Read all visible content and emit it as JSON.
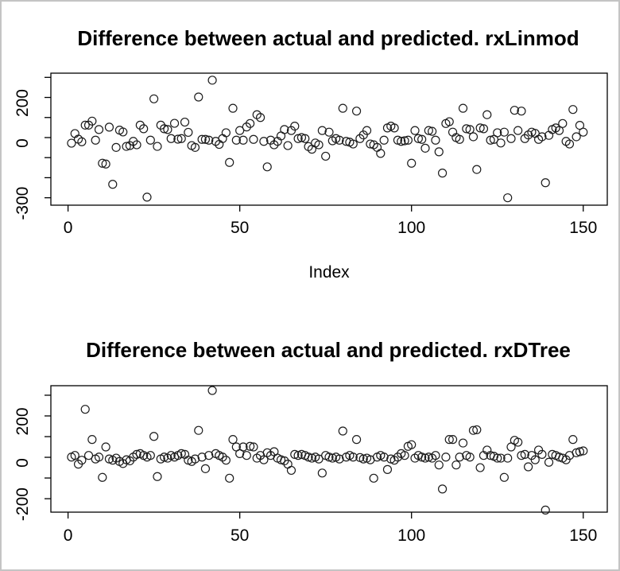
{
  "window": {
    "background": "#ffffff",
    "border_color": "#c4c4c4",
    "text_color": "#000000",
    "point_color": "#1c1c1c"
  },
  "titles": {
    "linmod": "Difference between actual and predicted. rxLinmod",
    "dtree": "Difference between actual and predicted. rxDTree"
  },
  "chart_data": [
    {
      "type": "scatter",
      "id": "rxLinmod",
      "title": "Difference between actual and predicted. rxLinmod",
      "xlabel": "Index",
      "ylabel": "",
      "marker": "open-circle",
      "grid": false,
      "x_start_index": 1,
      "xlim": [
        -5,
        157
      ],
      "ylim": [
        -337,
        321
      ],
      "x_ticks": [
        0,
        50,
        100,
        150
      ],
      "y_ticks": [
        300,
        200,
        100,
        0,
        -100,
        -200,
        -300
      ],
      "y_tick_labels_visible": [
        "200",
        "0",
        "-300"
      ],
      "values": [
        -28,
        20,
        -8,
        -21,
        62,
        62,
        82,
        -13,
        40,
        -128,
        -132,
        52,
        -233,
        -49,
        37,
        28,
        -44,
        -40,
        -19,
        -36,
        62,
        44,
        -297,
        -13,
        193,
        -44,
        62,
        44,
        40,
        -5,
        71,
        -8,
        -5,
        77,
        26,
        -40,
        -49,
        202,
        -9,
        -9,
        -13,
        286,
        -19,
        -34,
        -5,
        24,
        -124,
        146,
        -13,
        35,
        -13,
        53,
        70,
        -9,
        114,
        100,
        -19,
        -146,
        -13,
        -36,
        -19,
        8,
        40,
        -40,
        35,
        57,
        -5,
        0,
        -5,
        -45,
        -58,
        -27,
        -36,
        35,
        -93,
        27,
        -16,
        -5,
        -13,
        146,
        -19,
        -23,
        -32,
        132,
        -5,
        13,
        35,
        -32,
        -36,
        -49,
        -79,
        -13,
        48,
        57,
        48,
        -13,
        -19,
        -16,
        -13,
        -128,
        35,
        -5,
        -9,
        -53,
        35,
        31,
        -13,
        -71,
        -177,
        70,
        79,
        27,
        0,
        -9,
        146,
        44,
        40,
        4,
        -159,
        48,
        44,
        114,
        -13,
        -9,
        24,
        -27,
        27,
        -300,
        -5,
        136,
        35,
        132,
        -5,
        13,
        27,
        21,
        -9,
        4,
        -225,
        11,
        40,
        48,
        35,
        70,
        -19,
        -32,
        140,
        4,
        61,
        27
      ]
    },
    {
      "type": "scatter",
      "id": "rxDTree",
      "title": "Difference between actual and predicted. rxDTree",
      "xlabel": "",
      "ylabel": "",
      "marker": "open-circle",
      "grid": false,
      "x_start_index": 1,
      "xlim": [
        -5,
        157
      ],
      "ylim": [
        -265,
        346
      ],
      "x_ticks": [
        0,
        50,
        100,
        150
      ],
      "y_ticks": [
        300,
        200,
        100,
        0,
        -100,
        -200
      ],
      "y_tick_labels_visible": [
        "200",
        "0",
        "-200"
      ],
      "values": [
        1,
        9,
        -33,
        -14,
        232,
        9,
        86,
        -8,
        1,
        -97,
        50,
        -8,
        -14,
        -4,
        -20,
        -30,
        -12,
        -17,
        1,
        14,
        18,
        9,
        1,
        9,
        101,
        -93,
        -8,
        1,
        -4,
        9,
        1,
        9,
        18,
        14,
        -14,
        -20,
        -8,
        130,
        1,
        -55,
        9,
        323,
        18,
        9,
        1,
        -14,
        -101,
        86,
        50,
        18,
        50,
        9,
        53,
        50,
        -4,
        9,
        -12,
        22,
        9,
        27,
        -4,
        -12,
        -17,
        -33,
        -63,
        14,
        9,
        14,
        9,
        1,
        -4,
        1,
        -8,
        -76,
        9,
        1,
        -4,
        1,
        -8,
        127,
        1,
        9,
        1,
        86,
        -1,
        -8,
        -4,
        -12,
        -101,
        1,
        9,
        1,
        -59,
        -8,
        -14,
        1,
        18,
        9,
        53,
        61,
        -4,
        9,
        1,
        -4,
        1,
        -4,
        9,
        -37,
        -153,
        1,
        86,
        86,
        -37,
        1,
        69,
        9,
        1,
        130,
        133,
        -50,
        9,
        35,
        9,
        5,
        -4,
        -4,
        -97,
        -4,
        50,
        82,
        73,
        9,
        14,
        -46,
        9,
        -12,
        35,
        14,
        -255,
        -24,
        14,
        9,
        1,
        -4,
        -12,
        9,
        86,
        22,
        27,
        31
      ]
    }
  ]
}
